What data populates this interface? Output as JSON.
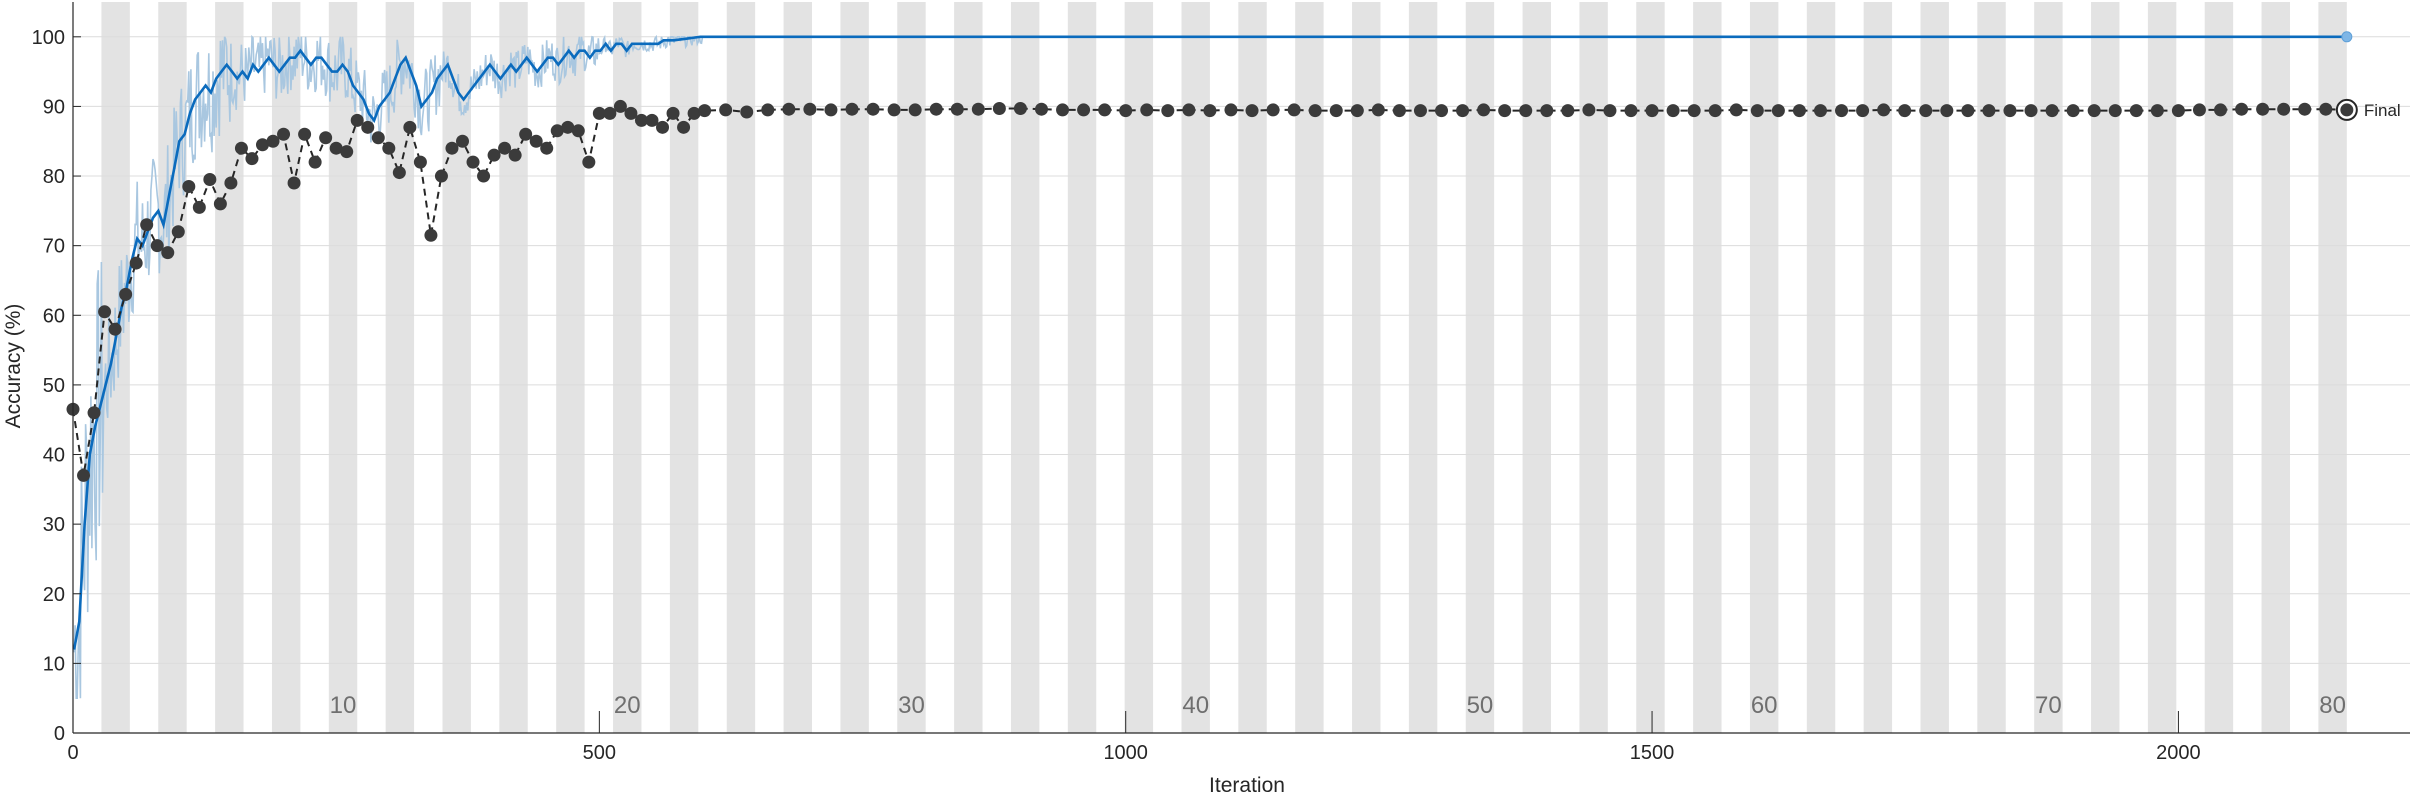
{
  "chart_data": {
    "type": "line",
    "xlabel": "Iteration",
    "ylabel": "Accuracy (%)",
    "xlim": [
      0,
      2220
    ],
    "ylim": [
      0,
      105
    ],
    "xticks": [
      0,
      500,
      1000,
      1500,
      2000
    ],
    "yticks": [
      0,
      10,
      20,
      30,
      40,
      50,
      60,
      70,
      80,
      90,
      100
    ],
    "grid": true,
    "iterations_per_epoch": 27,
    "epoch_labels": [
      10,
      20,
      30,
      40,
      50,
      60,
      70,
      80
    ],
    "final_label": "Final",
    "colors": {
      "training_raw": "#a9c7e0",
      "training_smoothed": "#0b6bbd",
      "validation": "#3b3b3b",
      "epoch_shade": "#e3e3e3"
    },
    "series": [
      {
        "key": "training_smoothed",
        "x": [
          1,
          6,
          11,
          16,
          21,
          26,
          31,
          36,
          41,
          46,
          51,
          56,
          61,
          66,
          71,
          76,
          81,
          86,
          91,
          96,
          101,
          106,
          111,
          116,
          121,
          126,
          131,
          136,
          141,
          146,
          151,
          156,
          161,
          166,
          171,
          176,
          181,
          186,
          191,
          196,
          201,
          206,
          211,
          216,
          221,
          226,
          231,
          236,
          241,
          246,
          251,
          256,
          261,
          266,
          271,
          276,
          281,
          286,
          291,
          296,
          301,
          306,
          311,
          316,
          321,
          326,
          331,
          336,
          341,
          346,
          351,
          356,
          361,
          366,
          371,
          376,
          381,
          386,
          391,
          396,
          401,
          406,
          411,
          416,
          421,
          426,
          431,
          436,
          441,
          446,
          451,
          456,
          461,
          466,
          471,
          476,
          481,
          486,
          491,
          496,
          501,
          506,
          511,
          516,
          521,
          526,
          531,
          536,
          541,
          546,
          551,
          556,
          561,
          566,
          571,
          576,
          581,
          586,
          591,
          596,
          600,
          2160
        ],
        "values": [
          12,
          16,
          30,
          40,
          44,
          47,
          50,
          53,
          57,
          61,
          64,
          68,
          71,
          70,
          72,
          74,
          75,
          73,
          77,
          81,
          85,
          86,
          89,
          91,
          92,
          93,
          92,
          94,
          95,
          96,
          95,
          94,
          95,
          94,
          96,
          95,
          96,
          97,
          96,
          95,
          96,
          97,
          97,
          98,
          97,
          96,
          97,
          97,
          96,
          95,
          95,
          96,
          95,
          93,
          92,
          91,
          89,
          88,
          90,
          91,
          92,
          94,
          96,
          97,
          95,
          93,
          90,
          91,
          92,
          94,
          95,
          96,
          94,
          92,
          91,
          92,
          93,
          94,
          95,
          96,
          95,
          94,
          95,
          96,
          95,
          96,
          97,
          96,
          95,
          96,
          97,
          97,
          96,
          97,
          98,
          97,
          98,
          98,
          97,
          98,
          98,
          99,
          98,
          99,
          99,
          98,
          99,
          99,
          99,
          99,
          99,
          99,
          99.5,
          99.5,
          99.5,
          99.6,
          99.7,
          99.8,
          99.9,
          100,
          100,
          100
        ]
      },
      {
        "key": "validation",
        "x": [
          0,
          10,
          20,
          30,
          40,
          50,
          60,
          70,
          80,
          90,
          100,
          110,
          120,
          130,
          140,
          150,
          160,
          170,
          180,
          190,
          200,
          210,
          220,
          230,
          240,
          250,
          260,
          270,
          280,
          290,
          300,
          310,
          320,
          330,
          340,
          350,
          360,
          370,
          380,
          390,
          400,
          410,
          420,
          430,
          440,
          450,
          460,
          470,
          480,
          490,
          500,
          510,
          520,
          530,
          540,
          550,
          560,
          570,
          580,
          590,
          600,
          620,
          640,
          660,
          680,
          700,
          720,
          740,
          760,
          780,
          800,
          820,
          840,
          860,
          880,
          900,
          920,
          940,
          960,
          980,
          1000,
          1020,
          1040,
          1060,
          1080,
          1100,
          1120,
          1140,
          1160,
          1180,
          1200,
          1220,
          1240,
          1260,
          1280,
          1300,
          1320,
          1340,
          1360,
          1380,
          1400,
          1420,
          1440,
          1460,
          1480,
          1500,
          1520,
          1540,
          1560,
          1580,
          1600,
          1620,
          1640,
          1660,
          1680,
          1700,
          1720,
          1740,
          1760,
          1780,
          1800,
          1820,
          1840,
          1860,
          1880,
          1900,
          1920,
          1940,
          1960,
          1980,
          2000,
          2020,
          2040,
          2060,
          2080,
          2100,
          2120,
          2140,
          2160
        ],
        "values": [
          46.5,
          37,
          46,
          60.5,
          58,
          63,
          67.5,
          73,
          70,
          69,
          72,
          78.5,
          75.5,
          79.5,
          76,
          79,
          84,
          82.5,
          84.5,
          85,
          86,
          79,
          86,
          82,
          85.5,
          84,
          83.5,
          88,
          87,
          85.5,
          84,
          80.5,
          87,
          82,
          71.5,
          80,
          84,
          85,
          82,
          80,
          83,
          84,
          83,
          86,
          85,
          84,
          86.5,
          87,
          86.5,
          82,
          89,
          89,
          90,
          89,
          88,
          88,
          87,
          89,
          87,
          89,
          89.4,
          89.5,
          89.2,
          89.5,
          89.6,
          89.6,
          89.5,
          89.6,
          89.6,
          89.5,
          89.5,
          89.6,
          89.6,
          89.6,
          89.7,
          89.7,
          89.6,
          89.5,
          89.5,
          89.5,
          89.4,
          89.5,
          89.4,
          89.5,
          89.4,
          89.5,
          89.4,
          89.5,
          89.5,
          89.4,
          89.4,
          89.4,
          89.5,
          89.4,
          89.4,
          89.4,
          89.4,
          89.5,
          89.4,
          89.4,
          89.4,
          89.4,
          89.5,
          89.4,
          89.4,
          89.4,
          89.4,
          89.4,
          89.4,
          89.5,
          89.4,
          89.4,
          89.4,
          89.4,
          89.4,
          89.4,
          89.5,
          89.4,
          89.4,
          89.4,
          89.4,
          89.4,
          89.4,
          89.4,
          89.4,
          89.4,
          89.4,
          89.4,
          89.4,
          89.4,
          89.4,
          89.5,
          89.5,
          89.6,
          89.6,
          89.6,
          89.6,
          89.6,
          89.5
        ]
      }
    ]
  }
}
